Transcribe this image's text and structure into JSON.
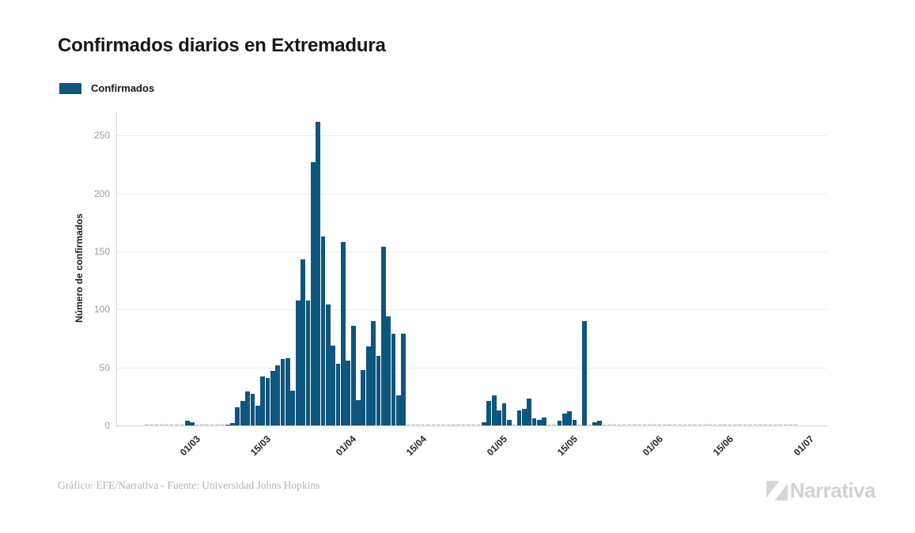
{
  "header": {
    "title": "Confirmados diarios en Extremadura"
  },
  "legend": {
    "label": "Confirmados",
    "swatch_color": "#0e567d"
  },
  "footer": {
    "credit": "Gráfico: EFE/Narrativa - Fuente: Universidad Johns Hopkins",
    "logo_text": "Narrativa"
  },
  "chart_data": {
    "type": "bar",
    "title": "Confirmados diarios en Extremadura",
    "series_name": "Confirmados",
    "xlabel": "",
    "ylabel": "Número de confirmados",
    "ylim": [
      0,
      270
    ],
    "y_ticks": [
      0,
      50,
      100,
      150,
      200,
      250
    ],
    "x_tick_labels": [
      "01/03",
      "15/03",
      "01/04",
      "15/04",
      "01/05",
      "15/05",
      "01/06",
      "15/06",
      "01/07"
    ],
    "grid": "horizontal",
    "legend_position": "top-left",
    "bar_color": "#0e567d",
    "zero_marker_color": "#cfdfe9",
    "year": "2020",
    "points": [
      [
        "22/02",
        0
      ],
      [
        "23/02",
        0
      ],
      [
        "24/02",
        0
      ],
      [
        "25/02",
        0
      ],
      [
        "26/02",
        0
      ],
      [
        "27/02",
        0
      ],
      [
        "28/02",
        0
      ],
      [
        "29/02",
        0
      ],
      [
        "01/03",
        4
      ],
      [
        "02/03",
        3
      ],
      [
        "03/03",
        0
      ],
      [
        "04/03",
        0
      ],
      [
        "05/03",
        0
      ],
      [
        "06/03",
        0
      ],
      [
        "07/03",
        0
      ],
      [
        "08/03",
        0
      ],
      [
        "09/03",
        1
      ],
      [
        "10/03",
        2
      ],
      [
        "11/03",
        16
      ],
      [
        "12/03",
        21
      ],
      [
        "13/03",
        29
      ],
      [
        "14/03",
        27
      ],
      [
        "15/03",
        17
      ],
      [
        "16/03",
        42
      ],
      [
        "17/03",
        41
      ],
      [
        "18/03",
        47
      ],
      [
        "19/03",
        52
      ],
      [
        "20/03",
        57
      ],
      [
        "21/03",
        58
      ],
      [
        "22/03",
        30
      ],
      [
        "23/03",
        108
      ],
      [
        "24/03",
        143
      ],
      [
        "25/03",
        108
      ],
      [
        "26/03",
        227
      ],
      [
        "27/03",
        262
      ],
      [
        "28/03",
        163
      ],
      [
        "29/03",
        104
      ],
      [
        "30/03",
        69
      ],
      [
        "31/03",
        53
      ],
      [
        "01/04",
        158
      ],
      [
        "02/04",
        56
      ],
      [
        "03/04",
        86
      ],
      [
        "04/04",
        22
      ],
      [
        "05/04",
        48
      ],
      [
        "06/04",
        68
      ],
      [
        "07/04",
        90
      ],
      [
        "08/04",
        60
      ],
      [
        "09/04",
        154
      ],
      [
        "10/04",
        94
      ],
      [
        "11/04",
        79
      ],
      [
        "12/04",
        26
      ],
      [
        "13/04",
        79
      ],
      [
        "14/04",
        0
      ],
      [
        "15/04",
        0
      ],
      [
        "16/04",
        0
      ],
      [
        "17/04",
        0
      ],
      [
        "18/04",
        0
      ],
      [
        "19/04",
        0
      ],
      [
        "20/04",
        0
      ],
      [
        "21/04",
        0
      ],
      [
        "22/04",
        0
      ],
      [
        "23/04",
        0
      ],
      [
        "24/04",
        0
      ],
      [
        "25/04",
        0
      ],
      [
        "26/04",
        0
      ],
      [
        "27/04",
        0
      ],
      [
        "28/04",
        0
      ],
      [
        "29/04",
        3
      ],
      [
        "30/04",
        21
      ],
      [
        "01/05",
        26
      ],
      [
        "02/05",
        13
      ],
      [
        "03/05",
        19
      ],
      [
        "04/05",
        5
      ],
      [
        "05/05",
        0
      ],
      [
        "06/05",
        13
      ],
      [
        "07/05",
        14
      ],
      [
        "08/05",
        23
      ],
      [
        "09/05",
        6
      ],
      [
        "10/05",
        5
      ],
      [
        "11/05",
        7
      ],
      [
        "12/05",
        0
      ],
      [
        "13/05",
        0
      ],
      [
        "14/05",
        4
      ],
      [
        "15/05",
        10
      ],
      [
        "16/05",
        12
      ],
      [
        "17/05",
        5
      ],
      [
        "18/05",
        0
      ],
      [
        "19/05",
        90
      ],
      [
        "20/05",
        0
      ],
      [
        "21/05",
        3
      ],
      [
        "22/05",
        4
      ],
      [
        "23/05",
        0
      ],
      [
        "24/05",
        0
      ],
      [
        "25/05",
        0
      ],
      [
        "26/05",
        0
      ],
      [
        "27/05",
        0
      ],
      [
        "28/05",
        0
      ],
      [
        "29/05",
        0
      ],
      [
        "30/05",
        0
      ],
      [
        "31/05",
        0
      ],
      [
        "01/06",
        0
      ],
      [
        "02/06",
        0
      ],
      [
        "03/06",
        0
      ],
      [
        "04/06",
        0
      ],
      [
        "05/06",
        0
      ],
      [
        "06/06",
        0
      ],
      [
        "07/06",
        0
      ],
      [
        "08/06",
        0
      ],
      [
        "09/06",
        0
      ],
      [
        "10/06",
        0
      ],
      [
        "11/06",
        0
      ],
      [
        "12/06",
        0
      ],
      [
        "13/06",
        0
      ],
      [
        "14/06",
        0
      ],
      [
        "15/06",
        0
      ],
      [
        "16/06",
        0
      ],
      [
        "17/06",
        0
      ],
      [
        "18/06",
        0
      ],
      [
        "19/06",
        0
      ],
      [
        "20/06",
        0
      ],
      [
        "21/06",
        0
      ],
      [
        "22/06",
        0
      ],
      [
        "23/06",
        0
      ],
      [
        "24/06",
        0
      ],
      [
        "25/06",
        0
      ],
      [
        "26/06",
        0
      ],
      [
        "27/06",
        0
      ],
      [
        "28/06",
        0
      ],
      [
        "29/06",
        0
      ],
      [
        "30/06",
        0
      ]
    ]
  }
}
